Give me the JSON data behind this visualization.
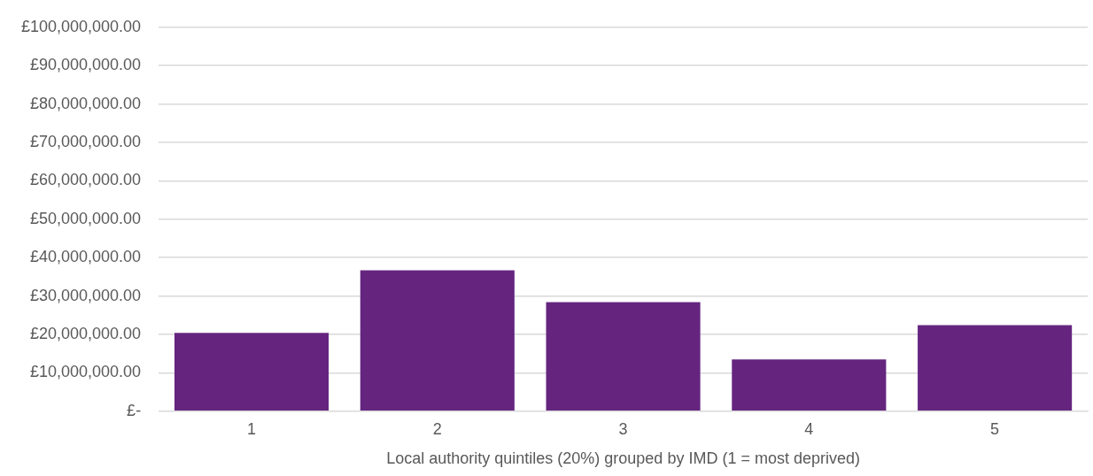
{
  "chart_data": {
    "type": "bar",
    "xlabel": "Local authority quintiles (20%) grouped by IMD (1 = most deprived)",
    "categories": [
      "1",
      "2",
      "3",
      "4",
      "5"
    ],
    "values": [
      20400000,
      36700000,
      28400000,
      13500000,
      22400000
    ],
    "color": "#65257f",
    "ylim": [
      0,
      100000000
    ],
    "yticks": [
      {
        "value": 0,
        "label": "£-"
      },
      {
        "value": 10000000,
        "label": "£10,000,000.00"
      },
      {
        "value": 20000000,
        "label": "£20,000,000.00"
      },
      {
        "value": 30000000,
        "label": "£30,000,000.00"
      },
      {
        "value": 40000000,
        "label": "£40,000,000.00"
      },
      {
        "value": 50000000,
        "label": "£50,000,000.00"
      },
      {
        "value": 60000000,
        "label": "£60,000,000.00"
      },
      {
        "value": 70000000,
        "label": "£70,000,000.00"
      },
      {
        "value": 80000000,
        "label": "£80,000,000.00"
      },
      {
        "value": 90000000,
        "label": "£90,000,000.00"
      },
      {
        "value": 100000000,
        "label": "£100,000,000.00"
      }
    ],
    "grid": "y",
    "legend": false
  }
}
